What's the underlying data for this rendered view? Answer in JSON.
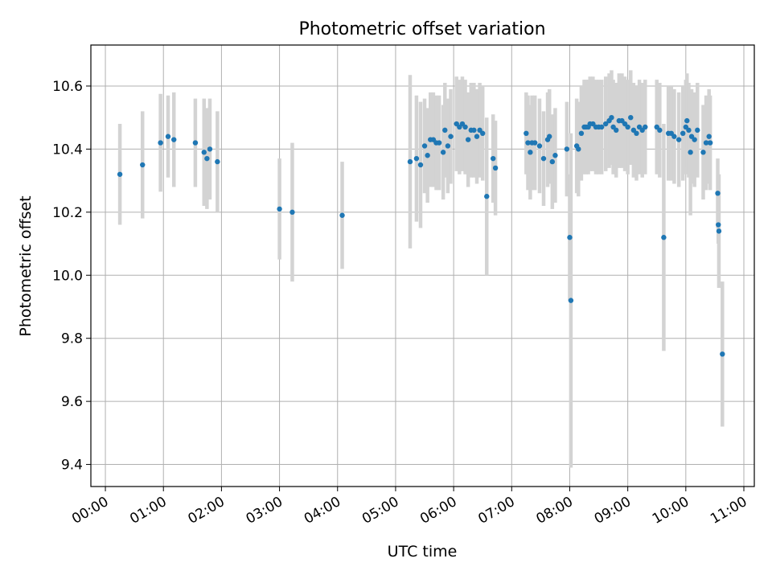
{
  "chart_data": {
    "type": "scatter",
    "title": "Photometric offset variation",
    "xlabel": "UTC time",
    "ylabel": "Photometric offset",
    "xlim_hours": [
      -0.25,
      11.18
    ],
    "ylim": [
      9.33,
      10.73
    ],
    "grid": true,
    "x_ticks": [
      {
        "hour": 0,
        "label": "00:00"
      },
      {
        "hour": 1,
        "label": "01:00"
      },
      {
        "hour": 2,
        "label": "02:00"
      },
      {
        "hour": 3,
        "label": "03:00"
      },
      {
        "hour": 4,
        "label": "04:00"
      },
      {
        "hour": 5,
        "label": "05:00"
      },
      {
        "hour": 6,
        "label": "06:00"
      },
      {
        "hour": 7,
        "label": "07:00"
      },
      {
        "hour": 8,
        "label": "08:00"
      },
      {
        "hour": 9,
        "label": "09:00"
      },
      {
        "hour": 10,
        "label": "10:00"
      },
      {
        "hour": 11,
        "label": "11:00"
      }
    ],
    "y_ticks": [
      {
        "value": 9.4,
        "label": "9.4"
      },
      {
        "value": 9.6,
        "label": "9.6"
      },
      {
        "value": 9.8,
        "label": "9.8"
      },
      {
        "value": 10.0,
        "label": "10.0"
      },
      {
        "value": 10.2,
        "label": "10.2"
      },
      {
        "value": 10.4,
        "label": "10.4"
      },
      {
        "value": 10.6,
        "label": "10.6"
      }
    ],
    "colors": {
      "point": "#1f77b4",
      "errorbar": "#d3d3d3",
      "grid": "#b0b0b0",
      "axes": "#000000"
    },
    "series": [
      {
        "name": "offset",
        "columns": [
          "utc_hour",
          "offset",
          "error"
        ],
        "points": [
          [
            0.25,
            10.32,
            0.16
          ],
          [
            0.64,
            10.35,
            0.17
          ],
          [
            0.95,
            10.42,
            0.155
          ],
          [
            1.08,
            10.44,
            0.13
          ],
          [
            1.18,
            10.43,
            0.15
          ],
          [
            1.55,
            10.42,
            0.14
          ],
          [
            1.7,
            10.39,
            0.17
          ],
          [
            1.75,
            10.37,
            0.16
          ],
          [
            1.8,
            10.4,
            0.16
          ],
          [
            1.93,
            10.36,
            0.16
          ],
          [
            3.0,
            10.21,
            0.16
          ],
          [
            3.22,
            10.2,
            0.22
          ],
          [
            4.08,
            10.19,
            0.17
          ],
          [
            5.25,
            10.36,
            0.275
          ],
          [
            5.36,
            10.37,
            0.2
          ],
          [
            5.43,
            10.35,
            0.2
          ],
          [
            5.5,
            10.41,
            0.15
          ],
          [
            5.55,
            10.38,
            0.15
          ],
          [
            5.6,
            10.43,
            0.15
          ],
          [
            5.65,
            10.43,
            0.15
          ],
          [
            5.7,
            10.42,
            0.15
          ],
          [
            5.75,
            10.42,
            0.15
          ],
          [
            5.82,
            10.39,
            0.15
          ],
          [
            5.85,
            10.46,
            0.15
          ],
          [
            5.9,
            10.41,
            0.15
          ],
          [
            5.95,
            10.44,
            0.15
          ],
          [
            6.05,
            10.48,
            0.15
          ],
          [
            6.1,
            10.47,
            0.15
          ],
          [
            6.15,
            10.48,
            0.15
          ],
          [
            6.2,
            10.47,
            0.15
          ],
          [
            6.25,
            10.43,
            0.15
          ],
          [
            6.3,
            10.46,
            0.15
          ],
          [
            6.35,
            10.46,
            0.15
          ],
          [
            6.4,
            10.44,
            0.15
          ],
          [
            6.45,
            10.46,
            0.15
          ],
          [
            6.5,
            10.45,
            0.15
          ],
          [
            6.57,
            10.25,
            0.25
          ],
          [
            6.68,
            10.37,
            0.14
          ],
          [
            6.72,
            10.34,
            0.15
          ],
          [
            7.25,
            10.45,
            0.13
          ],
          [
            7.28,
            10.42,
            0.15
          ],
          [
            7.32,
            10.39,
            0.15
          ],
          [
            7.35,
            10.42,
            0.15
          ],
          [
            7.4,
            10.42,
            0.15
          ],
          [
            7.48,
            10.41,
            0.15
          ],
          [
            7.55,
            10.37,
            0.15
          ],
          [
            7.62,
            10.43,
            0.15
          ],
          [
            7.65,
            10.44,
            0.15
          ],
          [
            7.7,
            10.36,
            0.15
          ],
          [
            7.75,
            10.38,
            0.15
          ],
          [
            7.95,
            10.4,
            0.15
          ],
          [
            8.0,
            10.12,
            0.2
          ],
          [
            8.02,
            9.92,
            0.53
          ],
          [
            8.12,
            10.41,
            0.15
          ],
          [
            8.15,
            10.4,
            0.15
          ],
          [
            8.2,
            10.45,
            0.15
          ],
          [
            8.25,
            10.47,
            0.15
          ],
          [
            8.28,
            10.47,
            0.15
          ],
          [
            8.32,
            10.47,
            0.15
          ],
          [
            8.35,
            10.48,
            0.15
          ],
          [
            8.4,
            10.48,
            0.15
          ],
          [
            8.45,
            10.47,
            0.15
          ],
          [
            8.5,
            10.47,
            0.15
          ],
          [
            8.55,
            10.47,
            0.15
          ],
          [
            8.62,
            10.48,
            0.15
          ],
          [
            8.68,
            10.49,
            0.15
          ],
          [
            8.72,
            10.5,
            0.15
          ],
          [
            8.75,
            10.47,
            0.15
          ],
          [
            8.8,
            10.46,
            0.15
          ],
          [
            8.85,
            10.49,
            0.15
          ],
          [
            8.9,
            10.49,
            0.15
          ],
          [
            8.95,
            10.48,
            0.15
          ],
          [
            9.0,
            10.47,
            0.15
          ],
          [
            9.05,
            10.5,
            0.15
          ],
          [
            9.1,
            10.46,
            0.15
          ],
          [
            9.15,
            10.45,
            0.15
          ],
          [
            9.2,
            10.47,
            0.15
          ],
          [
            9.25,
            10.46,
            0.15
          ],
          [
            9.3,
            10.47,
            0.15
          ],
          [
            9.5,
            10.47,
            0.15
          ],
          [
            9.55,
            10.46,
            0.15
          ],
          [
            9.62,
            10.12,
            0.36
          ],
          [
            9.7,
            10.45,
            0.15
          ],
          [
            9.75,
            10.45,
            0.15
          ],
          [
            9.8,
            10.44,
            0.15
          ],
          [
            9.88,
            10.43,
            0.15
          ],
          [
            9.95,
            10.45,
            0.15
          ],
          [
            10.0,
            10.47,
            0.15
          ],
          [
            10.02,
            10.49,
            0.15
          ],
          [
            10.05,
            10.46,
            0.15
          ],
          [
            10.08,
            10.39,
            0.2
          ],
          [
            10.1,
            10.44,
            0.15
          ],
          [
            10.15,
            10.43,
            0.15
          ],
          [
            10.2,
            10.46,
            0.15
          ],
          [
            10.3,
            10.39,
            0.15
          ],
          [
            10.35,
            10.42,
            0.15
          ],
          [
            10.4,
            10.44,
            0.15
          ],
          [
            10.42,
            10.42,
            0.15
          ],
          [
            10.55,
            10.26,
            0.11
          ],
          [
            10.56,
            10.16,
            0.06
          ],
          [
            10.57,
            10.14,
            0.18
          ],
          [
            10.63,
            9.75,
            0.23
          ]
        ]
      }
    ]
  }
}
